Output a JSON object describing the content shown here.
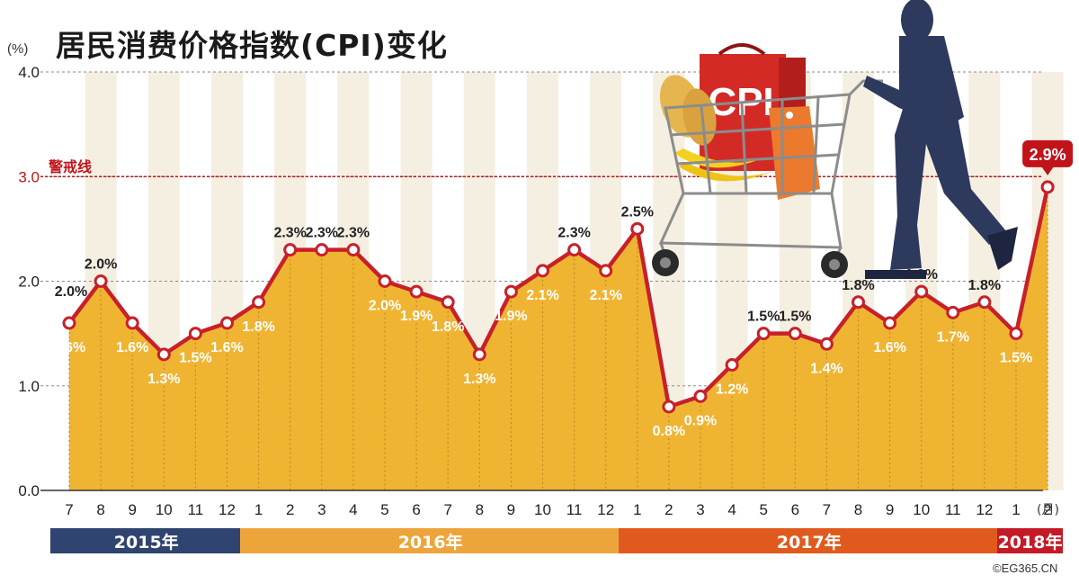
{
  "title": "居民消费价格指数(CPI)变化",
  "y_unit": "(%)",
  "x_unit": "(月)",
  "alert_label": "警戒线",
  "copyright": "©EG365.CN",
  "illustration": {
    "bag_text": "CPI",
    "icons": [
      "shopping-cart-icon",
      "person-silhouette-icon",
      "bread-icon",
      "banana-icon",
      "price-tag-icon"
    ]
  },
  "colors": {
    "line": "#c8202a",
    "area": "#f0b433",
    "stripe": "#f5efe2",
    "alert": "#c0141a",
    "year_2015": "#2f4470",
    "year_2016": "#eda43a",
    "year_2017": "#e15a1d",
    "year_2018": "#c41a27"
  },
  "chart_data": {
    "type": "area",
    "title": "居民消费价格指数(CPI)变化",
    "xlabel": "(月)",
    "ylabel": "(%)",
    "ylim": [
      0,
      4
    ],
    "yticks": [
      "0.0",
      "1.0",
      "2.0",
      "3.0",
      "4.0"
    ],
    "grid": true,
    "categories": [
      "7",
      "8",
      "9",
      "10",
      "11",
      "12",
      "1",
      "2",
      "3",
      "4",
      "5",
      "6",
      "7",
      "8",
      "9",
      "10",
      "11",
      "12",
      "1",
      "2",
      "3",
      "4",
      "5",
      "6",
      "7",
      "8",
      "9",
      "10",
      "11",
      "12",
      "1",
      "2"
    ],
    "values": [
      1.6,
      2.0,
      1.6,
      1.3,
      1.5,
      1.6,
      1.8,
      2.3,
      2.3,
      2.3,
      2.0,
      1.9,
      1.8,
      1.3,
      1.9,
      2.1,
      2.3,
      2.1,
      2.5,
      0.8,
      0.9,
      1.2,
      1.5,
      1.5,
      1.4,
      1.8,
      1.6,
      1.9,
      1.7,
      1.8,
      1.5,
      2.9
    ],
    "data_labels": [
      "1.6%",
      "2.0%",
      "1.6%",
      "1.3%",
      "1.5%",
      "1.6%",
      "1.8%",
      "2.3%",
      "2.3%",
      "2.3%",
      "2.0%",
      "1.9%",
      "1.8%",
      "1.3%",
      "1.9%",
      "2.1%",
      "2.3%",
      "2.1%",
      "2.5%",
      "0.8%",
      "0.9%",
      "1.2%",
      "1.5%",
      "1.5%",
      "1.4%",
      "1.8%",
      "1.6%",
      "1.9%",
      "1.7%",
      "1.8%",
      "1.5%",
      "2.9%"
    ],
    "extra_labels": [
      {
        "index": 0,
        "text": "2.0%"
      }
    ],
    "reference_line": {
      "value": 3.0,
      "label": "警戒线"
    },
    "years": [
      {
        "label": "2015年",
        "start": 0,
        "end": 5
      },
      {
        "label": "2016年",
        "start": 6,
        "end": 17
      },
      {
        "label": "2017年",
        "start": 18,
        "end": 29
      },
      {
        "label": "2018年",
        "start": 30,
        "end": 31
      }
    ]
  }
}
